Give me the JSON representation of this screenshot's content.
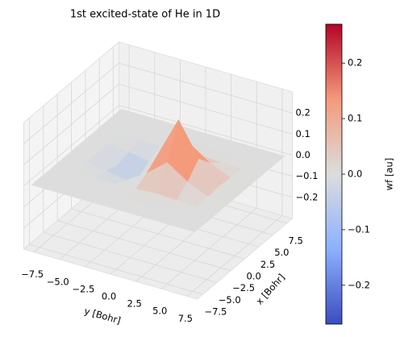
{
  "chart_data": {
    "type": "surface",
    "title": "1st excited-state of He in 1D",
    "xlabel": "y [Bohr]",
    "ylabel": "x [Bohr]",
    "x": [
      -8,
      -6,
      -4,
      -2,
      0,
      2,
      4,
      6,
      8
    ],
    "y": [
      -8,
      -6,
      -4,
      -2,
      0,
      2,
      4,
      6,
      8
    ],
    "z": [
      [
        0,
        0,
        0,
        0,
        0,
        0,
        0,
        0,
        0
      ],
      [
        0,
        0,
        0,
        0,
        0,
        0,
        0,
        0,
        0
      ],
      [
        0,
        0,
        -0.001,
        -0.002,
        0.002,
        0.008,
        0.003,
        0,
        0
      ],
      [
        0,
        -0.001,
        -0.014,
        -0.03,
        0.032,
        0.11,
        0.046,
        0.003,
        0
      ],
      [
        0,
        -0.002,
        -0.033,
        -0.072,
        0.077,
        0.268,
        0.11,
        0.008,
        0
      ],
      [
        0,
        -0.001,
        -0.014,
        -0.03,
        0.032,
        0.11,
        0.046,
        0.003,
        0
      ],
      [
        0,
        0,
        -0.001,
        -0.002,
        0.002,
        0.008,
        0.003,
        0,
        0
      ],
      [
        0,
        0,
        0,
        0,
        0,
        0,
        0,
        0,
        0
      ],
      [
        0,
        0,
        0,
        0,
        0,
        0,
        0,
        0,
        0
      ]
    ],
    "xlim": [
      -8.5,
      8.5
    ],
    "ylim": [
      -8.5,
      8.5
    ],
    "zlim": [
      -0.3,
      0.3
    ],
    "xticks": [
      {
        "value": -7.5,
        "label": "−7.5"
      },
      {
        "value": -5,
        "label": "−5.0"
      },
      {
        "value": -2.5,
        "label": "−2.5"
      },
      {
        "value": 0,
        "label": "0.0"
      },
      2.5,
      {
        "value": 5,
        "label": "5.0"
      },
      7.5
    ],
    "yticks": [
      {
        "value": -7.5,
        "label": "−7.5"
      },
      {
        "value": -5,
        "label": "−5.0"
      },
      {
        "value": -2.5,
        "label": "−2.5"
      },
      {
        "value": 0,
        "label": "0.0"
      },
      2.5,
      {
        "value": 5,
        "label": "5.0"
      },
      7.5
    ],
    "zticks": [
      {
        "value": -0.2,
        "label": "−0.2"
      },
      {
        "value": -0.1,
        "label": "−0.1"
      },
      {
        "value": 0,
        "label": "0.0"
      },
      0.1,
      0.2
    ],
    "colormap": [
      "#3b4cc0",
      "#8db0fe",
      "#dddddd",
      "#f49a7b",
      "#b40426"
    ],
    "colorbar": {
      "label": "wf [au]",
      "clim": [
        -0.27,
        0.27
      ],
      "ticks": [
        {
          "value": -0.2,
          "label": "−0.2"
        },
        {
          "value": -0.1,
          "label": "−0.1"
        },
        {
          "value": 0,
          "label": "0.0"
        },
        0.1,
        0.2
      ]
    },
    "grid": true
  }
}
